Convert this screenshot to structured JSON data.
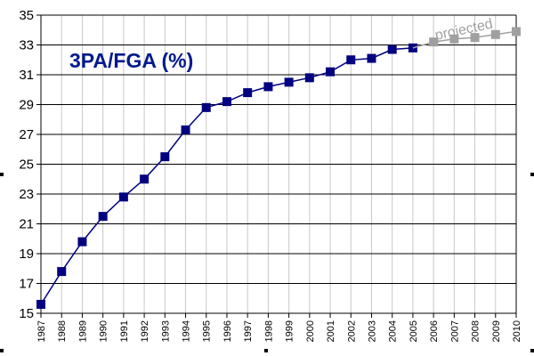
{
  "chart_data": {
    "type": "line",
    "title": "3PA/FGA (%)",
    "annotation": "projected",
    "x": [
      "1987",
      "1988",
      "1989",
      "1990",
      "1991",
      "1992",
      "1993",
      "1994",
      "1995",
      "1996",
      "1997",
      "1998",
      "1999",
      "2000",
      "2001",
      "2002",
      "2003",
      "2004",
      "2005",
      "2006",
      "2007",
      "2008",
      "2009",
      "2010"
    ],
    "ylim": [
      15,
      35
    ],
    "yticks": [
      15,
      17,
      19,
      21,
      23,
      25,
      27,
      29,
      31,
      33,
      35
    ],
    "grid": true,
    "series": [
      {
        "values": [
          15.6,
          17.8,
          19.8,
          21.5,
          22.8,
          24.0,
          25.5,
          27.3,
          28.8,
          29.2,
          29.8,
          30.2,
          30.5,
          30.8,
          31.2,
          32.0,
          32.1,
          32.7,
          32.8,
          null,
          null,
          null,
          null,
          null
        ],
        "color": "#000080"
      },
      {
        "values": [
          null,
          null,
          null,
          null,
          null,
          null,
          null,
          null,
          null,
          null,
          null,
          null,
          null,
          null,
          null,
          null,
          null,
          null,
          32.8,
          33.2,
          33.4,
          33.5,
          33.7,
          33.9
        ],
        "color": "#a0a0a0"
      }
    ]
  }
}
